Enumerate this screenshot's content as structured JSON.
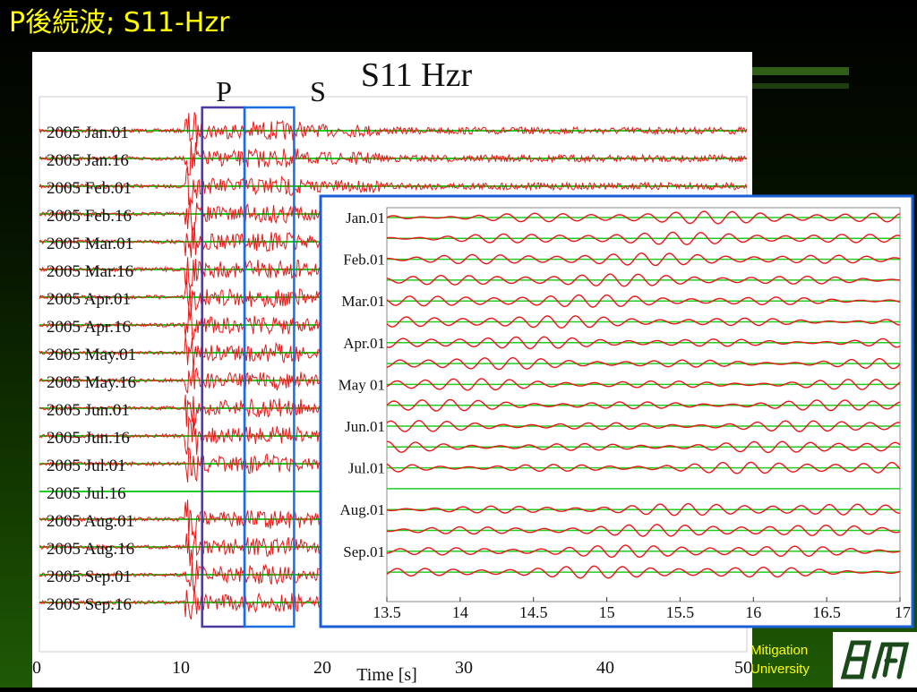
{
  "slide": {
    "title": "P後続波; S11-Hzr",
    "footer_lines": [
      "Mitigation",
      "University"
    ]
  },
  "colors": {
    "title": "#ffff00",
    "trace": "#e81818",
    "baseline": "#22cc22",
    "p_window": "#4a3aa0",
    "s_window": "#1a6fe0",
    "inset_border": "#1a5fd8"
  },
  "chart_data": [
    {
      "type": "line",
      "title": "S11 Hzr",
      "phase_labels": [
        "P",
        "S"
      ],
      "xlabel": "Time [s]",
      "ylabel": "",
      "xlim": [
        0,
        50
      ],
      "x_ticks": [
        "0",
        "10",
        "20",
        "30",
        "40",
        "50"
      ],
      "grid": false,
      "series": [
        {
          "name": "2005 Jan.01"
        },
        {
          "name": "2005 Jan.16"
        },
        {
          "name": "2005 Feb.01"
        },
        {
          "name": "2005 Feb.16"
        },
        {
          "name": "2005 Mar.01"
        },
        {
          "name": "2005 Mar.16"
        },
        {
          "name": "2005 Apr.01"
        },
        {
          "name": "2005 Apr.16"
        },
        {
          "name": "2005 May.01"
        },
        {
          "name": "2005 May.16"
        },
        {
          "name": "2005 Jun.01"
        },
        {
          "name": "2005 Jun.16"
        },
        {
          "name": "2005 Jul.01"
        },
        {
          "name": "2005 Jul.16",
          "flat": true
        },
        {
          "name": "2005 Aug.01"
        },
        {
          "name": "2005 Aug.16"
        },
        {
          "name": "2005 Sep.01"
        },
        {
          "name": "2005 Sep.16"
        }
      ],
      "p_window_s": [
        11.5,
        14.5
      ],
      "s_window_s": [
        14.5,
        18.0
      ],
      "p_onset_s": 10.5
    },
    {
      "type": "line",
      "title": "",
      "xlabel": "",
      "xlim": [
        13.5,
        17.0
      ],
      "x_ticks": [
        "13.5",
        "14",
        "14.5",
        "15",
        "15.5",
        "16",
        "16.5",
        "17"
      ],
      "y_labels": [
        "Jan.01",
        "Feb.01",
        "Mar.01",
        "Apr.01",
        "May 01",
        "Jun.01",
        "Jul.01",
        "Aug.01",
        "Sep.01"
      ],
      "trace_count": 18,
      "grid": false
    }
  ]
}
